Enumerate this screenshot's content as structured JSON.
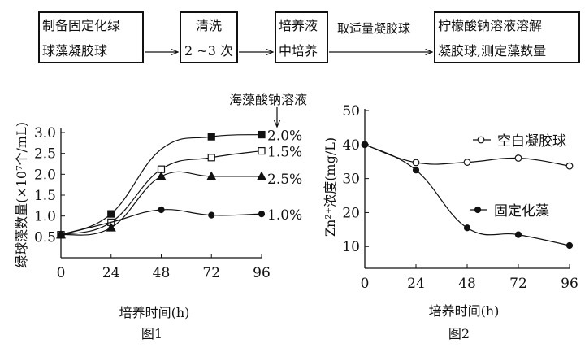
{
  "flowchart": {
    "steps": [
      {
        "line1": "制备固定化绿",
        "line2": "球藻凝胶球"
      },
      {
        "line1": "清洗",
        "line2": "2 ~3 次"
      },
      {
        "line1": "培养液",
        "line2": "中培养"
      },
      {
        "line1": "柠檬酸钠溶液溶解",
        "line2": "凝胶球,测定藻数量"
      }
    ],
    "arrow_label": "取适量凝胶球"
  },
  "chart_data": [
    {
      "type": "line",
      "caption": "图1",
      "xlabel": "培养时间(h)",
      "ylabel": "绿球藻数量(×10⁷个/mL)",
      "legend_title": "海藻酸钠溶液",
      "x": [
        0,
        24,
        48,
        72,
        96
      ],
      "xticks": [
        "0",
        "24",
        "48",
        "72",
        "96"
      ],
      "yticks": [
        "0.5",
        "1.0",
        "1.5",
        "2.0",
        "2.5",
        "3.0"
      ],
      "ylim": [
        0,
        3.0
      ],
      "series": [
        {
          "name": "2.0%",
          "marker": "filled-square",
          "values": [
            0.55,
            1.05,
            2.6,
            2.9,
            2.95
          ],
          "marked": [
            true,
            true,
            false,
            true,
            true
          ]
        },
        {
          "name": "1.5%",
          "marker": "open-square",
          "values": [
            0.55,
            0.85,
            2.12,
            2.4,
            2.56
          ],
          "marked": [
            true,
            true,
            true,
            true,
            true
          ]
        },
        {
          "name": "2.5%",
          "marker": "filled-triangle",
          "values": [
            0.55,
            0.72,
            1.95,
            1.95,
            1.95
          ],
          "marked": [
            true,
            true,
            true,
            true,
            true
          ]
        },
        {
          "name": "1.0%",
          "marker": "filled-circle",
          "values": [
            0.55,
            0.85,
            1.15,
            1.02,
            1.05
          ],
          "marked": [
            true,
            false,
            true,
            true,
            true
          ]
        }
      ]
    },
    {
      "type": "line",
      "caption": "图2",
      "xlabel": "培养时间(h)",
      "ylabel": "Zn²⁺浓度(mg/L)",
      "x": [
        0,
        24,
        48,
        72,
        96
      ],
      "xticks": [
        "0",
        "24",
        "48",
        "72",
        "96"
      ],
      "yticks": [
        "10",
        "20",
        "30",
        "40",
        "50"
      ],
      "ylim": [
        3.6,
        50
      ],
      "series": [
        {
          "name": "空白凝胶球",
          "marker": "open-circle",
          "values": [
            40,
            34.7,
            34.8,
            36,
            33.7
          ]
        },
        {
          "name": "固定化藻",
          "marker": "filled-circle",
          "values": [
            40,
            32.5,
            15.5,
            13.5,
            10.3
          ]
        }
      ]
    }
  ]
}
